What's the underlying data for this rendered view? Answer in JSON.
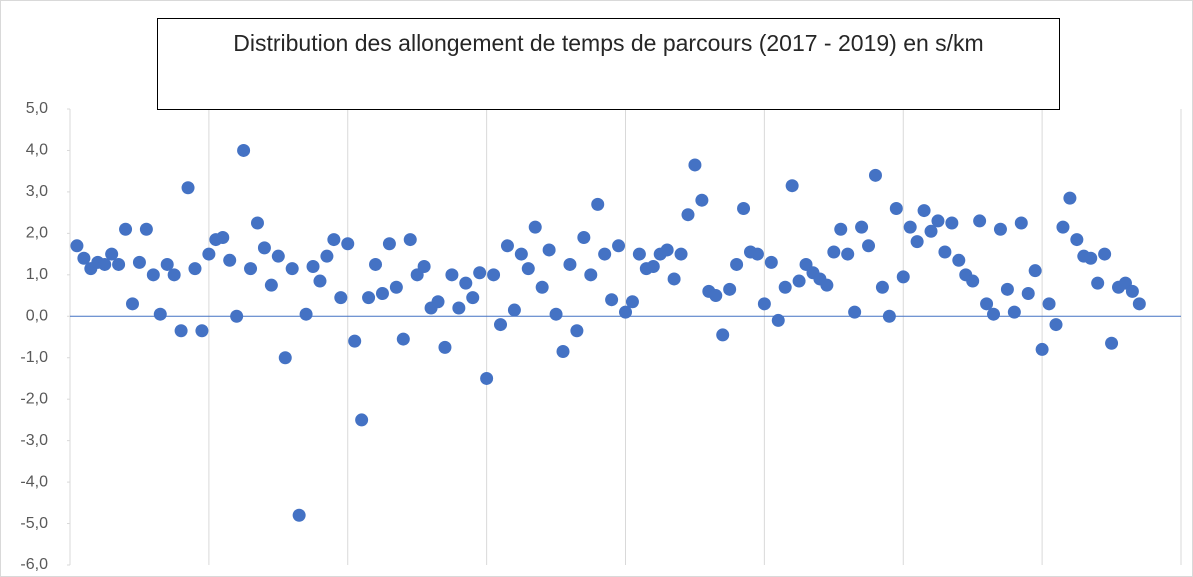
{
  "chart_data": {
    "type": "scatter",
    "title": "Distribution des allongement de temps de parcours (2017 - 2019) en s/km",
    "color": "#4472c4",
    "x": [
      1,
      2,
      3,
      4,
      5,
      6,
      7,
      8,
      9,
      10,
      11,
      12,
      13,
      14,
      15,
      16,
      17,
      18,
      19,
      20,
      21,
      22,
      23,
      24,
      25,
      26,
      27,
      28,
      29,
      30,
      31,
      32,
      33,
      34,
      35,
      36,
      37,
      38,
      39,
      40,
      41,
      42,
      43,
      44,
      45,
      46,
      47,
      48,
      49,
      50,
      51,
      52,
      53,
      54,
      55,
      56,
      57,
      58,
      59,
      60,
      61,
      62,
      63,
      64,
      65,
      66,
      67,
      68,
      69,
      70,
      71,
      72,
      73,
      74,
      75,
      76,
      77,
      78,
      79,
      80,
      81,
      82,
      83,
      84,
      85,
      86,
      87,
      88,
      89,
      90,
      91,
      92,
      93,
      94,
      95,
      96,
      97,
      98,
      99,
      100,
      101,
      102,
      103,
      104,
      105,
      106,
      107,
      108,
      109,
      110,
      111,
      112,
      113,
      114,
      115,
      116,
      117,
      118,
      119,
      120,
      121,
      122,
      123,
      124,
      125,
      126,
      127,
      128,
      129,
      130,
      131,
      132,
      133,
      134,
      135,
      136,
      137,
      138,
      139,
      140,
      141,
      142,
      143,
      144,
      145,
      146,
      147,
      148,
      149,
      150,
      151,
      152,
      153,
      154
    ],
    "values": [
      1.7,
      1.4,
      1.15,
      1.3,
      1.25,
      1.5,
      1.25,
      2.1,
      0.3,
      1.3,
      2.1,
      1.0,
      0.05,
      1.25,
      1.0,
      -0.35,
      3.1,
      1.15,
      -0.35,
      1.5,
      1.85,
      1.9,
      1.35,
      0.0,
      4.0,
      1.15,
      2.25,
      1.65,
      0.75,
      1.45,
      -1.0,
      1.15,
      -4.8,
      0.05,
      1.2,
      0.85,
      1.45,
      1.85,
      0.45,
      1.75,
      -0.6,
      -2.5,
      0.45,
      1.25,
      0.55,
      1.75,
      0.7,
      -0.55,
      1.85,
      1.0,
      1.2,
      0.2,
      0.35,
      -0.75,
      1.0,
      0.2,
      0.8,
      0.45,
      1.05,
      -1.5,
      1.0,
      -0.2,
      1.7,
      0.15,
      1.5,
      1.15,
      2.15,
      0.7,
      1.6,
      0.05,
      -0.85,
      1.25,
      -0.35,
      1.9,
      1.0,
      2.7,
      1.5,
      0.4,
      1.7,
      0.1,
      0.35,
      1.5,
      1.15,
      1.2,
      1.5,
      1.6,
      0.9,
      1.5,
      2.45,
      3.65,
      2.8,
      0.6,
      0.5,
      -0.45,
      0.65,
      1.25,
      2.6,
      1.55,
      1.5,
      0.3,
      1.3,
      -0.1,
      0.7,
      3.15,
      0.85,
      1.25,
      1.05,
      0.9,
      0.75,
      1.55,
      2.1,
      1.5,
      0.1,
      2.15,
      1.7,
      3.4,
      0.7,
      0.0,
      2.6,
      0.95,
      2.15,
      1.8,
      2.55,
      2.05,
      2.3,
      1.55,
      2.25,
      1.35,
      1.0,
      0.85,
      2.3,
      0.3,
      0.05,
      2.1,
      0.65,
      0.1,
      2.25,
      0.55,
      1.1,
      -0.8,
      0.3,
      -0.2,
      2.15,
      2.85,
      1.85,
      1.45,
      1.4,
      0.8,
      1.5,
      -0.65,
      0.7,
      0.8,
      0.6,
      0.3
    ],
    "xlim": [
      0,
      160
    ],
    "xticks": [
      0,
      20,
      40,
      60,
      80,
      100,
      120,
      140,
      160
    ],
    "ylim": [
      -6,
      5
    ],
    "yticks": [
      {
        "value": 5,
        "label": "5,0"
      },
      {
        "value": 4,
        "label": "4,0"
      },
      {
        "value": 3,
        "label": "3,0"
      },
      {
        "value": 2,
        "label": "2,0"
      },
      {
        "value": 1,
        "label": "1,0"
      },
      {
        "value": 0,
        "label": "0,0"
      },
      {
        "value": -1,
        "label": "-1,0"
      },
      {
        "value": -2,
        "label": "-2,0"
      },
      {
        "value": -3,
        "label": "-3,0"
      },
      {
        "value": -4,
        "label": "-4,0"
      },
      {
        "value": -5,
        "label": "-5,0"
      },
      {
        "value": -6,
        "label": "-6,0"
      }
    ],
    "grid": true
  }
}
